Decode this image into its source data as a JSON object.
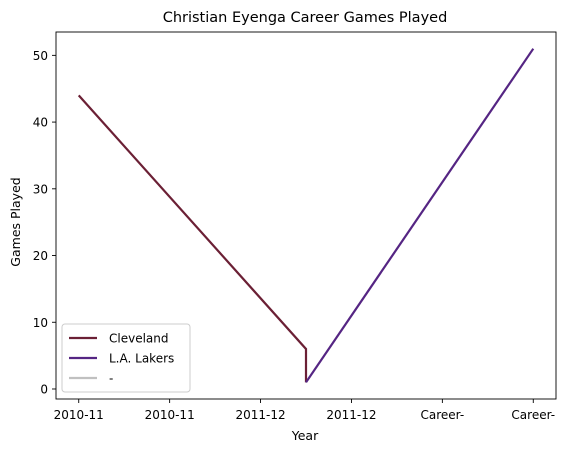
{
  "chart_data": {
    "type": "line",
    "title": "Christian Eyenga Career Games Played",
    "xlabel": "Year",
    "ylabel": "Games Played",
    "categories": [
      "2010-11",
      "2010-11",
      "2011-12",
      "2011-12",
      "Career-",
      "Career-"
    ],
    "xlim": [
      -0.25,
      5.25
    ],
    "ylim": [
      -1.5,
      53.5
    ],
    "yticks": [
      0,
      10,
      20,
      30,
      40,
      50
    ],
    "grid": false,
    "legend_position": "lower-left",
    "series": [
      {
        "name": "Cleveland",
        "color": "#6b2035",
        "points": [
          [
            0,
            44
          ],
          [
            2.5,
            6
          ],
          [
            2.5,
            1
          ]
        ]
      },
      {
        "name": "L.A. Lakers",
        "color": "#552583",
        "points": [
          [
            2.5,
            1
          ],
          [
            5,
            51
          ]
        ]
      },
      {
        "name": "-",
        "color": "#c0c0c0",
        "points": []
      }
    ]
  }
}
